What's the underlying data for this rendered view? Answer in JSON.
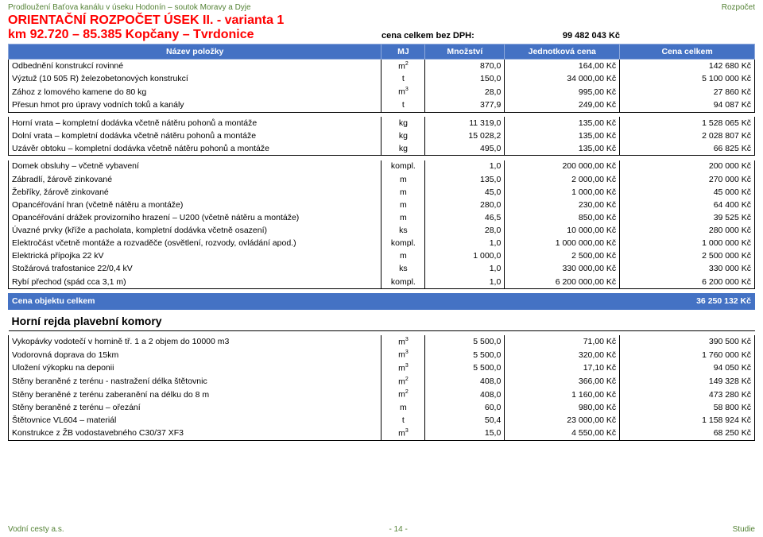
{
  "header": {
    "left": "Prodloužení Baťova kanálu v úseku Hodonín – soutok Moravy a Dyje",
    "right": "Rozpočet"
  },
  "title": {
    "line1": "ORIENTAČNÍ ROZPOČET  ÚSEK II. - varianta 1",
    "line2": "km 92.720 – 85.385 Kopčany – Tvrdonice",
    "total_label": "cena celkem bez DPH:",
    "total_value": "99 482 043 Kč"
  },
  "columns": {
    "name": "Název položky",
    "mj": "MJ",
    "qty": "Množství",
    "unit": "Jednotková cena",
    "total": "Cena celkem"
  },
  "groups": [
    [
      {
        "name": "Odbednění konstrukcí rovinné",
        "mj": "m²",
        "qty": "870,0",
        "unit": "164,00 Kč",
        "tot": "142 680 Kč"
      },
      {
        "name": "Výztuž (10 505 R) železobetonových konstrukcí",
        "mj": "t",
        "qty": "150,0",
        "unit": "34 000,00 Kč",
        "tot": "5 100 000 Kč"
      },
      {
        "name": "Zához z lomového kamene do 80 kg",
        "mj": "m³",
        "qty": "28,0",
        "unit": "995,00 Kč",
        "tot": "27 860 Kč"
      },
      {
        "name": "Přesun hmot pro úpravy vodních toků a kanály",
        "mj": "t",
        "qty": "377,9",
        "unit": "249,00 Kč",
        "tot": "94 087 Kč"
      }
    ],
    [
      {
        "name": "Horní vrata – kompletní dodávka včetně nátěru pohonů a montáže",
        "mj": "kg",
        "qty": "11 319,0",
        "unit": "135,00 Kč",
        "tot": "1 528 065 Kč"
      },
      {
        "name": "Dolní vrata – kompletní dodávka včetně nátěru pohonů a montáže",
        "mj": "kg",
        "qty": "15 028,2",
        "unit": "135,00 Kč",
        "tot": "2 028 807 Kč"
      },
      {
        "name": "Uzávěr obtoku – kompletní dodávka včetně nátěru pohonů a montáže",
        "mj": "kg",
        "qty": "495,0",
        "unit": "135,00 Kč",
        "tot": "66 825 Kč"
      }
    ],
    [
      {
        "name": "Domek obsluhy – včetně vybavení",
        "mj": "kompl.",
        "qty": "1,0",
        "unit": "200 000,00 Kč",
        "tot": "200 000 Kč"
      },
      {
        "name": "Zábradlí, žárově zinkované",
        "mj": "m",
        "qty": "135,0",
        "unit": "2 000,00 Kč",
        "tot": "270 000 Kč"
      },
      {
        "name": "Žebříky, žárově zinkované",
        "mj": "m",
        "qty": "45,0",
        "unit": "1 000,00 Kč",
        "tot": "45 000 Kč"
      },
      {
        "name": "Opancéřování hran (včetně nátěru a montáže)",
        "mj": "m",
        "qty": "280,0",
        "unit": "230,00 Kč",
        "tot": "64 400 Kč"
      },
      {
        "name": "Opancéřování drážek provizorního hrazení – U200 (včetně nátěru a montáže)",
        "mj": "m",
        "qty": "46,5",
        "unit": "850,00 Kč",
        "tot": "39 525 Kč"
      },
      {
        "name": "Úvazné prvky (kříže a pacholata, kompletní dodávka včetně osazení)",
        "mj": "ks",
        "qty": "28,0",
        "unit": "10 000,00 Kč",
        "tot": "280 000 Kč"
      },
      {
        "name": "Elektročást včetně montáže a rozvaděče (osvětlení, rozvody, ovládání apod.)",
        "mj": "kompl.",
        "qty": "1,0",
        "unit": "1 000 000,00 Kč",
        "tot": "1 000 000 Kč"
      },
      {
        "name": "Elektrická přípojka 22 kV",
        "mj": "m",
        "qty": "1 000,0",
        "unit": "2 500,00 Kč",
        "tot": "2 500 000 Kč"
      },
      {
        "name": "Stožárová trafostanice 22/0,4 kV",
        "mj": "ks",
        "qty": "1,0",
        "unit": "330 000,00 Kč",
        "tot": "330 000 Kč"
      },
      {
        "name": "Rybí přechod (spád cca 3,1 m)",
        "mj": "kompl.",
        "qty": "1,0",
        "unit": "6 200 000,00 Kč",
        "tot": "6 200 000 Kč"
      }
    ]
  ],
  "object_total": {
    "label": "Cena objektu celkem",
    "value": "36 250 132 Kč"
  },
  "section_title": "Horní rejda plavební komory",
  "section_rows": [
    {
      "name": "Vykopávky vodotečí v hornině tř. 1 a 2 objem do 10000 m3",
      "mj": "m³",
      "qty": "5 500,0",
      "unit": "71,00 Kč",
      "tot": "390 500 Kč"
    },
    {
      "name": "Vodorovná doprava  do 15km",
      "mj": "m³",
      "qty": "5 500,0",
      "unit": "320,00 Kč",
      "tot": "1 760 000 Kč"
    },
    {
      "name": "Uložení výkopku na deponii",
      "mj": "m³",
      "qty": "5 500,0",
      "unit": "17,10 Kč",
      "tot": "94 050 Kč"
    },
    {
      "name": "Stěny beraněné z terénu - nastražení délka štětovnic",
      "mj": "m²",
      "qty": "408,0",
      "unit": "366,00 Kč",
      "tot": "149 328 Kč"
    },
    {
      "name": "Stěny beraněné z terénu zaberanění na délku do 8 m",
      "mj": "m²",
      "qty": "408,0",
      "unit": "1 160,00 Kč",
      "tot": "473 280 Kč"
    },
    {
      "name": "Stěny beraněné z terénu – ořezání",
      "mj": "m",
      "qty": "60,0",
      "unit": "980,00 Kč",
      "tot": "58 800 Kč"
    },
    {
      "name": "Štětovnice  VL604 – materiál",
      "mj": "t",
      "qty": "50,4",
      "unit": "23 000,00 Kč",
      "tot": "1 158 924 Kč"
    },
    {
      "name": "Konstrukce z ŽB vodostavebného C30/37 XF3",
      "mj": "m³",
      "qty": "15,0",
      "unit": "4 550,00 Kč",
      "tot": "68 250 Kč"
    }
  ],
  "footer": {
    "left": "Vodní cesty a.s.",
    "center": "- 14 -",
    "right": "Studie"
  },
  "colors": {
    "header_bg": "#4472c4",
    "header_fg": "#ffffff",
    "accent_green": "#548235",
    "title_red": "#ff0000",
    "border": "#000000"
  }
}
